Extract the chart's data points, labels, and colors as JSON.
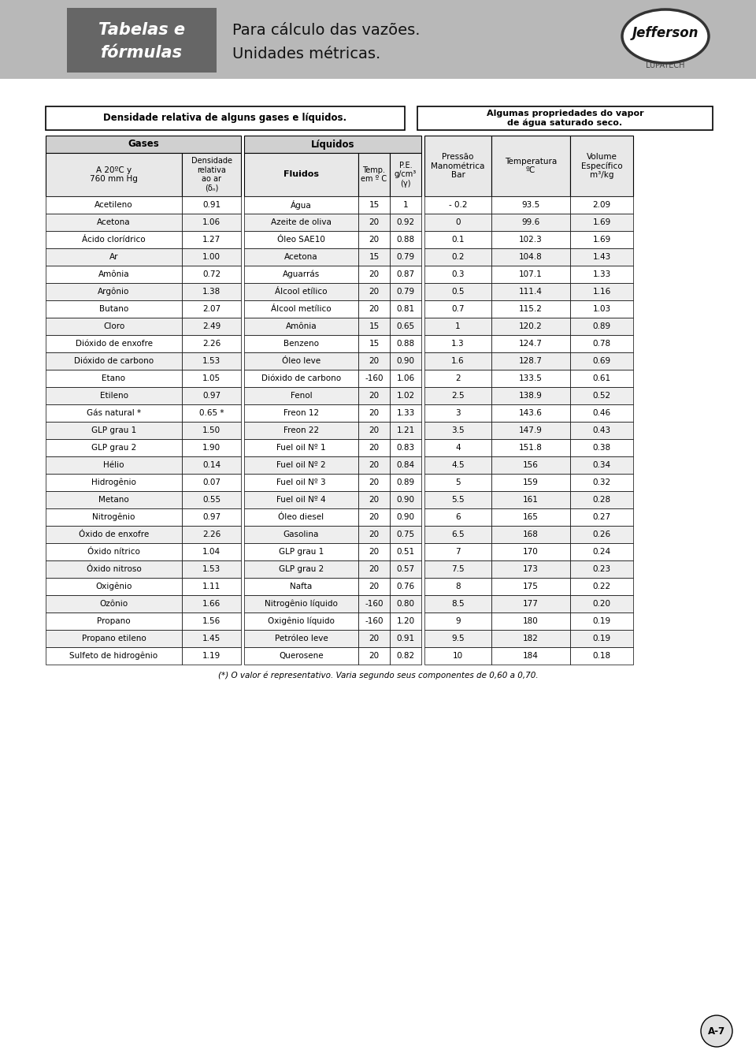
{
  "page_bg": "#d8d8d8",
  "content_bg": "#ffffff",
  "header_bg": "#b0b0b0",
  "header_dark_bg": "#696969",
  "header_title_line1": "Tabelas e",
  "header_title_line2": "fórmulas",
  "header_subtitle_line1": "Para cálculo das vazões.",
  "header_subtitle_line2": "Unidades métricas.",
  "section1_title": "Densidade relativa de alguns gases e líquidos.",
  "section2_title": "Algumas propriedades do vapor\nde água saturado seco.",
  "gases_header": "Gases",
  "liquidos_header": "Líquidos",
  "gas_col1_header": "A 20ºC y\n760 mm Hg",
  "gas_col2_header": "Densidade\nrelativa\nao ar\n(δₙ)",
  "liq_col1_header": "Fluidos",
  "liq_col2_header": "Temp.\nem º C",
  "liq_col3_header": "P.E.\ng/cm³\n(γ)",
  "vap_col1_header": "Pressão\nManométrica\nBar",
  "vap_col2_header": "Temperatura\nºC",
  "vap_col3_header": "Volume\nEspecífico\nm³/kg",
  "gases": [
    [
      "Acetileno",
      "0.91"
    ],
    [
      "Acetona",
      "1.06"
    ],
    [
      "Ácido clorídrico",
      "1.27"
    ],
    [
      "Ar",
      "1.00"
    ],
    [
      "Amônia",
      "0.72"
    ],
    [
      "Argônio",
      "1.38"
    ],
    [
      "Butano",
      "2.07"
    ],
    [
      "Cloro",
      "2.49"
    ],
    [
      "Dióxido de enxofre",
      "2.26"
    ],
    [
      "Dióxido de carbono",
      "1.53"
    ],
    [
      "Etano",
      "1.05"
    ],
    [
      "Etileno",
      "0.97"
    ],
    [
      "Gás natural *",
      "0.65 *"
    ],
    [
      "GLP grau 1",
      "1.50"
    ],
    [
      "GLP grau 2",
      "1.90"
    ],
    [
      "Hélio",
      "0.14"
    ],
    [
      "Hidrogênio",
      "0.07"
    ],
    [
      "Metano",
      "0.55"
    ],
    [
      "Nitrogênio",
      "0.97"
    ],
    [
      "Óxido de enxofre",
      "2.26"
    ],
    [
      "Óxido nítrico",
      "1.04"
    ],
    [
      "Óxido nitroso",
      "1.53"
    ],
    [
      "Oxigênio",
      "1.11"
    ],
    [
      "Ozônio",
      "1.66"
    ],
    [
      "Propano",
      "1.56"
    ],
    [
      "Propano etileno",
      "1.45"
    ],
    [
      "Sulfeto de hidrogênio",
      "1.19"
    ]
  ],
  "liquidos": [
    [
      "Água",
      "15",
      "1"
    ],
    [
      "Azeite de oliva",
      "20",
      "0.92"
    ],
    [
      "Óleo SAE10",
      "20",
      "0.88"
    ],
    [
      "Acetona",
      "15",
      "0.79"
    ],
    [
      "Aguarrás",
      "20",
      "0.87"
    ],
    [
      "Álcool etílico",
      "20",
      "0.79"
    ],
    [
      "Álcool metílico",
      "20",
      "0.81"
    ],
    [
      "Amônia",
      "15",
      "0.65"
    ],
    [
      "Benzeno",
      "15",
      "0.88"
    ],
    [
      "Óleo leve",
      "20",
      "0.90"
    ],
    [
      "Dióxido de carbono",
      "-160",
      "1.06"
    ],
    [
      "Fenol",
      "20",
      "1.02"
    ],
    [
      "Freon 12",
      "20",
      "1.33"
    ],
    [
      "Freon 22",
      "20",
      "1.21"
    ],
    [
      "Fuel oil Nº 1",
      "20",
      "0.83"
    ],
    [
      "Fuel oil Nº 2",
      "20",
      "0.84"
    ],
    [
      "Fuel oil Nº 3",
      "20",
      "0.89"
    ],
    [
      "Fuel oil Nº 4",
      "20",
      "0.90"
    ],
    [
      "Óleo diesel",
      "20",
      "0.90"
    ],
    [
      "Gasolina",
      "20",
      "0.75"
    ],
    [
      "GLP grau 1",
      "20",
      "0.51"
    ],
    [
      "GLP grau 2",
      "20",
      "0.57"
    ],
    [
      "Nafta",
      "20",
      "0.76"
    ],
    [
      "Nitrogênio líquido",
      "-160",
      "0.80"
    ],
    [
      "Oxigênio líquido",
      "-160",
      "1.20"
    ],
    [
      "Petróleo leve",
      "20",
      "0.91"
    ],
    [
      "Querosene",
      "20",
      "0.82"
    ]
  ],
  "vapor": [
    [
      "- 0.2",
      "93.5",
      "2.09"
    ],
    [
      "0",
      "99.6",
      "1.69"
    ],
    [
      "0.1",
      "102.3",
      "1.69"
    ],
    [
      "0.2",
      "104.8",
      "1.43"
    ],
    [
      "0.3",
      "107.1",
      "1.33"
    ],
    [
      "0.5",
      "111.4",
      "1.16"
    ],
    [
      "0.7",
      "115.2",
      "1.03"
    ],
    [
      "1",
      "120.2",
      "0.89"
    ],
    [
      "1.3",
      "124.7",
      "0.78"
    ],
    [
      "1.6",
      "128.7",
      "0.69"
    ],
    [
      "2",
      "133.5",
      "0.61"
    ],
    [
      "2.5",
      "138.9",
      "0.52"
    ],
    [
      "3",
      "143.6",
      "0.46"
    ],
    [
      "3.5",
      "147.9",
      "0.43"
    ],
    [
      "4",
      "151.8",
      "0.38"
    ],
    [
      "4.5",
      "156",
      "0.34"
    ],
    [
      "5",
      "159",
      "0.32"
    ],
    [
      "5.5",
      "161",
      "0.28"
    ],
    [
      "6",
      "165",
      "0.27"
    ],
    [
      "6.5",
      "168",
      "0.26"
    ],
    [
      "7",
      "170",
      "0.24"
    ],
    [
      "7.5",
      "173",
      "0.23"
    ],
    [
      "8",
      "175",
      "0.22"
    ],
    [
      "8.5",
      "177",
      "0.20"
    ],
    [
      "9",
      "180",
      "0.19"
    ],
    [
      "9.5",
      "182",
      "0.19"
    ],
    [
      "10",
      "184",
      "0.18"
    ]
  ],
  "footnote": "(*) O valor é representativo. Varia segundo seus componentes de 0,60 a 0,70.",
  "page_label": "A-7"
}
